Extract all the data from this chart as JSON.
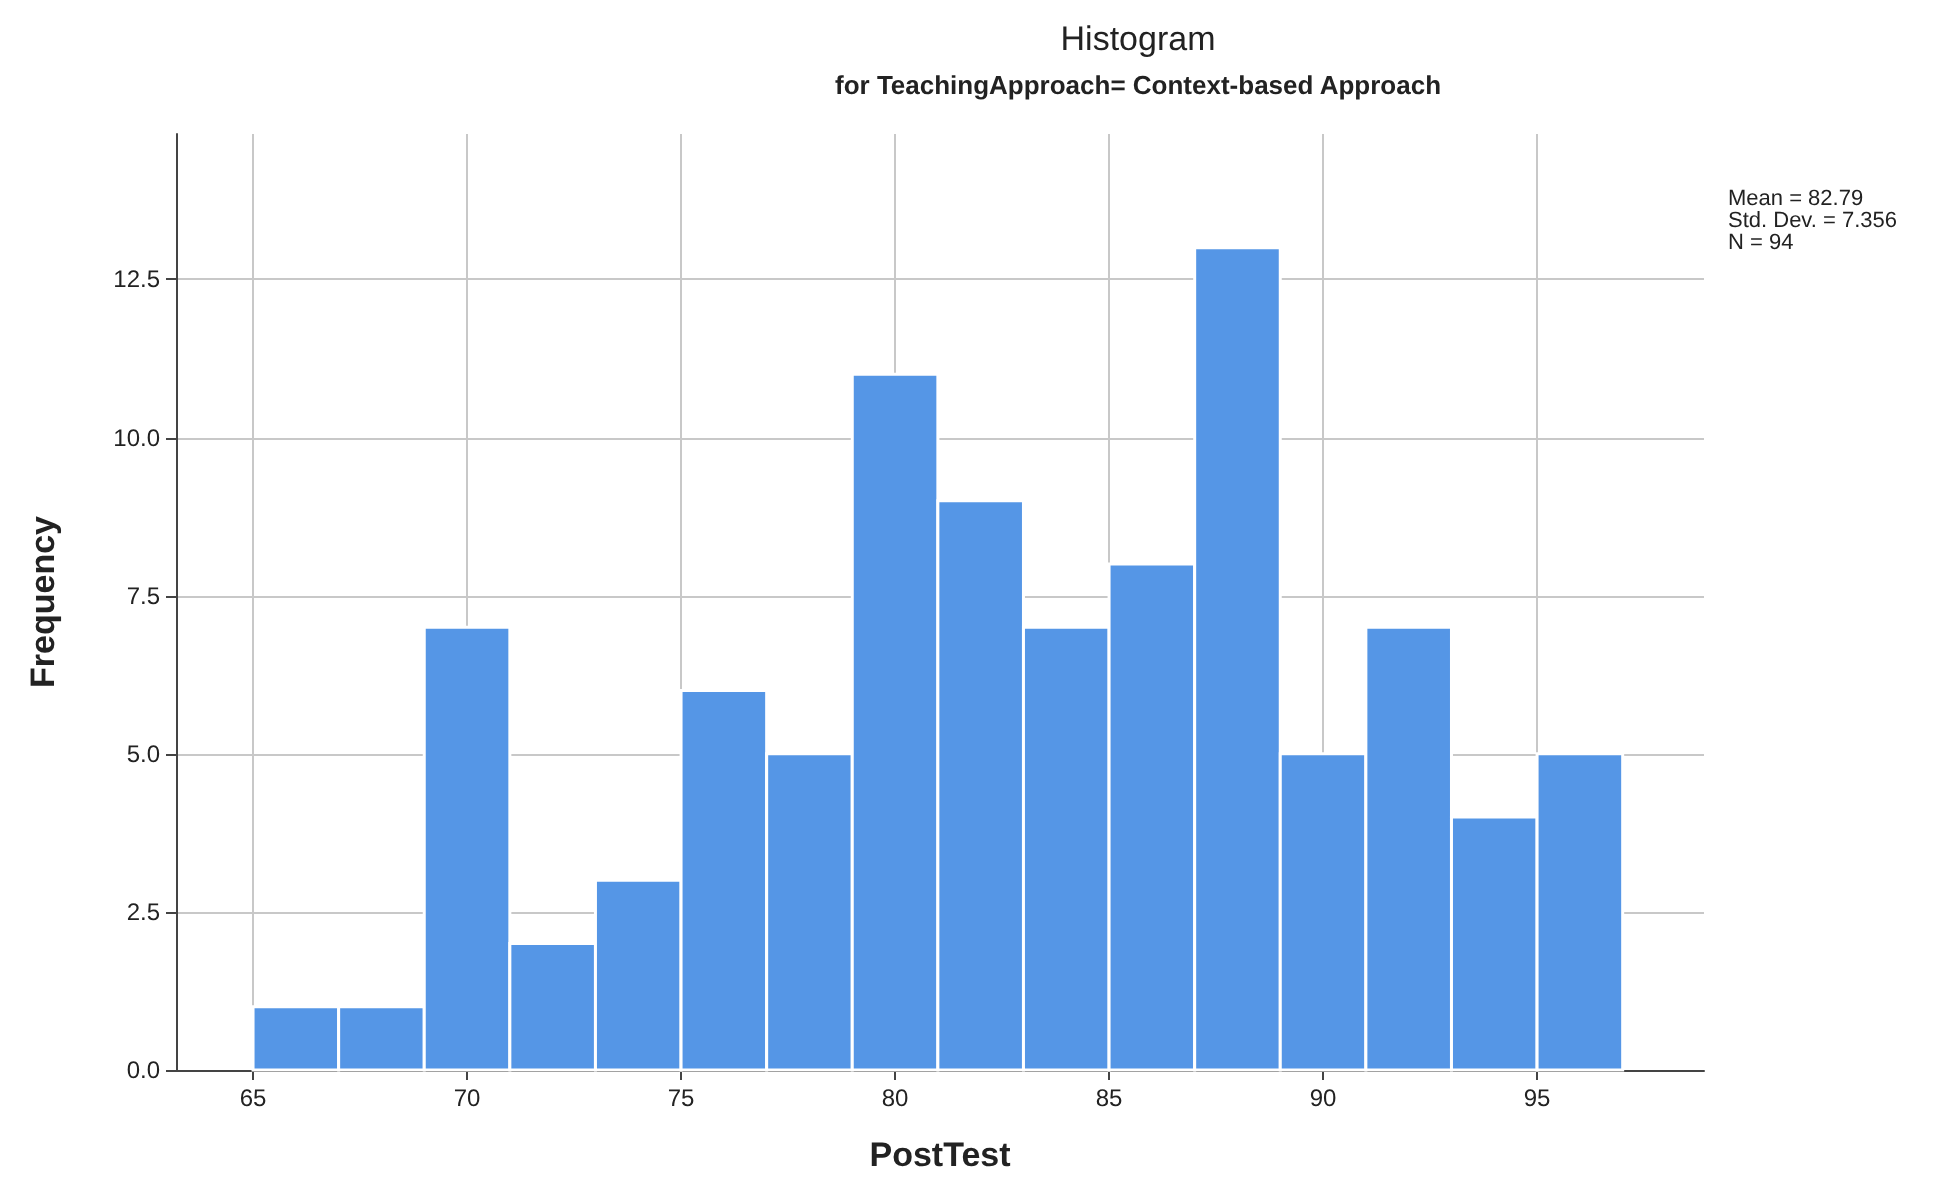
{
  "chart_data": {
    "type": "histogram",
    "title": "Histogram",
    "subtitle": "for TeachingApproach= Context-based Approach",
    "xlabel": "PostTest",
    "ylabel": "Frequency",
    "bins": [
      65,
      67,
      69,
      71,
      73,
      75,
      77,
      79,
      81,
      83,
      85,
      87,
      89,
      91,
      93,
      95,
      97
    ],
    "values": [
      1,
      1,
      7,
      2,
      3,
      6,
      5,
      11,
      9,
      7,
      8,
      13,
      5,
      7,
      4,
      5
    ],
    "color": "#5596e6",
    "xlim": [
      63.2,
      98.9
    ],
    "xticks": [
      65,
      70,
      75,
      80,
      85,
      90,
      95
    ],
    "ylim": [
      0,
      14.8
    ],
    "yticks": [
      {
        "value": 0,
        "label": "0.0"
      },
      {
        "value": 2.5,
        "label": "2.5"
      },
      {
        "value": 5,
        "label": "5.0"
      },
      {
        "value": 7.5,
        "label": "7.5"
      },
      {
        "value": 10,
        "label": "10.0"
      },
      {
        "value": 12.5,
        "label": "12.5"
      }
    ],
    "grid": true,
    "annotations": [
      "Mean = 82.79",
      "Std. Dev. = 7.356",
      "N = 94"
    ]
  }
}
